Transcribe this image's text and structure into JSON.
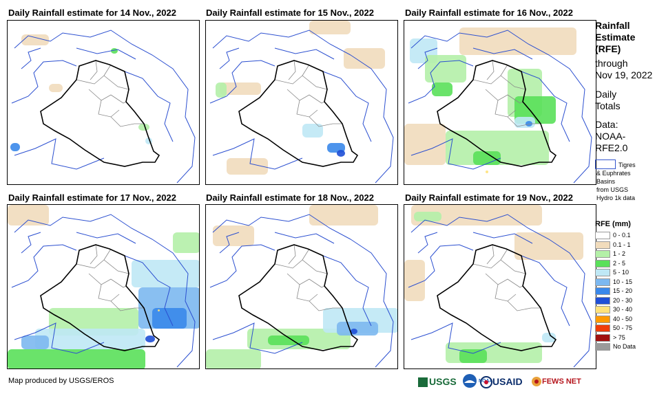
{
  "panels": [
    {
      "title": "Daily Rainfall estimate for 14 Nov., 2022"
    },
    {
      "title": "Daily Rainfall estimate for 15 Nov., 2022"
    },
    {
      "title": "Daily Rainfall estimate for 16 Nov., 2022"
    },
    {
      "title": "Daily Rainfall estimate for 17 Nov., 2022"
    },
    {
      "title": "Daily Rainfall estimate for 18 Nov., 2022"
    },
    {
      "title": "Daily Rainfall estimate for 19 Nov., 2022"
    }
  ],
  "sidebar": {
    "title_lines": [
      "Rainfall",
      "Estimate",
      "(RFE)"
    ],
    "through": "through",
    "date": "Nov 19, 2022",
    "totals_lines": [
      "Daily",
      "Totals"
    ],
    "data_lines": [
      "Data:",
      "NOAA-",
      "RFE2.0"
    ],
    "basins_lines": [
      "Tigres",
      "& Euphrates",
      "Basins",
      "from USGS",
      "Hydro 1k data"
    ]
  },
  "legend": {
    "title": "RFE (mm)",
    "items": [
      {
        "label": "0 - 0.1",
        "color": "#ffffff"
      },
      {
        "label": "0.1 - 1",
        "color": "#f1dcbc"
      },
      {
        "label": "1 - 2",
        "color": "#b4f0a8"
      },
      {
        "label": "2 - 5",
        "color": "#5ae05a"
      },
      {
        "label": "5 - 10",
        "color": "#bfe8f5"
      },
      {
        "label": "10 - 15",
        "color": "#7cb8f0"
      },
      {
        "label": "15 - 20",
        "color": "#3a88ea"
      },
      {
        "label": "20 - 30",
        "color": "#1f4fd6"
      },
      {
        "label": "30 - 40",
        "color": "#ffe27a"
      },
      {
        "label": "40 - 50",
        "color": "#ff9a00"
      },
      {
        "label": "50 - 75",
        "color": "#f03c0a"
      },
      {
        "label": "> 75",
        "color": "#a01010"
      },
      {
        "label": "No Data",
        "color": "#9a9a9a"
      }
    ]
  },
  "footer": {
    "credit": "Map produced by USGS/EROS",
    "logos": [
      "USGS",
      "NOAA",
      "USAID",
      "FEWS NET"
    ]
  }
}
